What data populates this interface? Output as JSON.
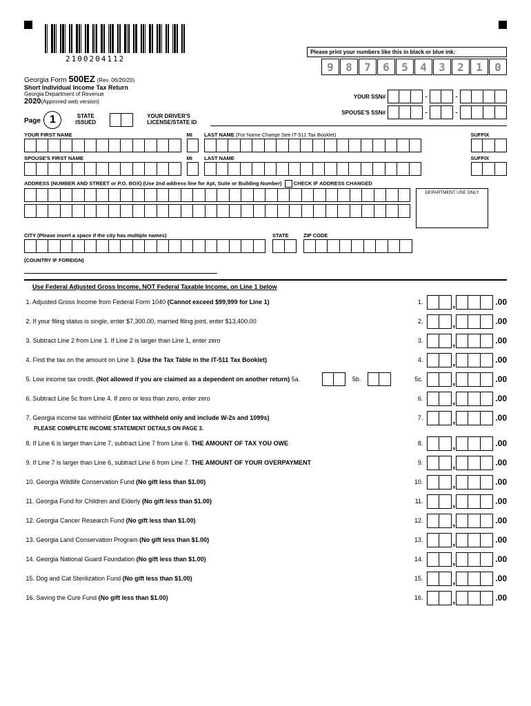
{
  "barcode_number": "2100204112",
  "instruction_text": "Please print your numbers like this in black or blue ink:",
  "example_digits": [
    "9",
    "8",
    "7",
    "6",
    "5",
    "4",
    "3",
    "2",
    "1",
    "0"
  ],
  "form": {
    "state": "Georgia Form",
    "number": "500EZ",
    "revision": "(Rev. 06/20/20)",
    "subtitle": "Short Individual Income Tax Return",
    "department": "Georgia Department of Revenue",
    "year": "2020",
    "version_note": "(Approved web version)"
  },
  "ssn": {
    "your_label": "YOUR SSN#",
    "spouse_label": "SPOUSE'S SSN#"
  },
  "page_label": "Page",
  "page_number": "1",
  "state_issued_label": "STATE\nISSUED",
  "driver_label": "YOUR DRIVER'S\nLICENSE/STATE ID",
  "name_fields": {
    "first": "YOUR FIRST NAME",
    "mi": "MI",
    "last": "LAST NAME",
    "last_note": "(For Name Change See IT-511 Tax Booklet)",
    "suffix": "SUFFIX",
    "spouse_first": "SPOUSE'S FIRST NAME",
    "spouse_last": "LAST NAME"
  },
  "address": {
    "label": "ADDRESS (NUMBER AND STREET or P.O. BOX) (Use 2nd address line for Apt, Suite or Building Number)",
    "check_label": "CHECK IF ADDRESS CHANGED",
    "dept_use": "DEPARTMENT USE ONLY",
    "city_label": "CITY (Please insert a space if the city has multiple names)",
    "state_label": "STATE",
    "zip_label": "ZIP CODE",
    "country_label": "(COUNTRY IF FOREIGN)"
  },
  "income_header": "Use Federal Adjusted Gross Income, NOT Federal Taxable Income, on Line 1 below",
  "lines": [
    {
      "n": "1.",
      "text": "Adjusted Gross Income from Federal Form 1040 ",
      "bold": "(Cannot exceed $99,999 for Line 1)",
      "num": "1."
    },
    {
      "n": "2.",
      "text": "If your filing status is single, enter $7,300.00, married filing joint, enter $13,400.00",
      "num": "2."
    },
    {
      "n": "3.",
      "text": "Subtract Line 2 from Line 1. If Line 2 is larger than Line 1, enter zero",
      "num": "3."
    },
    {
      "n": "4.",
      "text": "Find the tax on the amount on Line 3. ",
      "bold": "(Use the Tax Table in the IT-511 Tax Booklet)",
      "num": "4."
    },
    {
      "n": "5.",
      "text": "Low income tax credit. ",
      "bold": "(Not allowed if you are claimed as a dependent on another return)",
      "extra": " 5a.",
      "mid": "5b.",
      "num": "5c."
    },
    {
      "n": "6.",
      "text": "Subtract Line 5c from Line 4. If zero or less than zero, enter zero",
      "num": "6."
    },
    {
      "n": "7.",
      "text": "Georgia income tax withheld ",
      "bold": "(Enter tax withheld only and include W-2s and 1099s)",
      "sub": "PLEASE COMPLETE INCOME STATEMENT DETAILS ON PAGE 3.",
      "num": "7."
    },
    {
      "n": "8.",
      "text": "If Line 6 is larger than Line 7, subtract Line 7 from Line 6. ",
      "bold": "THE AMOUNT OF TAX YOU OWE",
      "num": "8."
    },
    {
      "n": "9.",
      "text": "If Line 7 is larger than Line 6, subtract Line 6 from Line 7. ",
      "bold": "THE AMOUNT OF YOUR OVERPAYMENT",
      "num": "9."
    },
    {
      "n": "10.",
      "text": "Georgia Wildlife Conservation Fund ",
      "bold": "(No gift less than $1.00)",
      "num": "10."
    },
    {
      "n": "11.",
      "text": "Georgia Fund for Children and Elderly ",
      "bold": "(No gift less than $1.00)",
      "num": "11."
    },
    {
      "n": "12.",
      "text": "Georgia Cancer Research Fund ",
      "bold": "(No gift less than $1.00)",
      "num": "12."
    },
    {
      "n": "13.",
      "text": "Georgia Land Conservation Program ",
      "bold": "(No gift less than $1.00)",
      "num": "13."
    },
    {
      "n": "14.",
      "text": "Georgia National Guard Foundation ",
      "bold": "(No gift less than $1.00)",
      "num": "14."
    },
    {
      "n": "15.",
      "text": "Dog and Cat Sterilization Fund ",
      "bold": "(No gift less than $1.00)",
      "num": "15."
    },
    {
      "n": "16.",
      "text": "Saving the Cure Fund ",
      "bold": "(No gift less than $1.00)",
      "num": "16."
    }
  ],
  "colors": {
    "text": "#000000",
    "bg": "#ffffff",
    "example_digit": "#888888"
  }
}
